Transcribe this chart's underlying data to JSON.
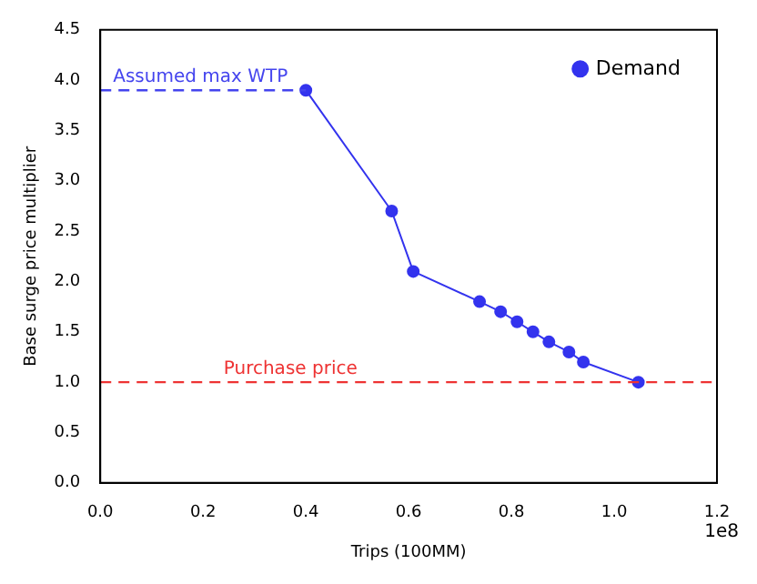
{
  "chart_data": {
    "type": "line",
    "xlabel": "Trips (100MM)",
    "ylabel": "Base surge price multiplier",
    "series": [
      {
        "name": "Demand",
        "color": "#3333ee",
        "x": [
          0.4,
          0.567,
          0.609,
          0.738,
          0.779,
          0.811,
          0.842,
          0.873,
          0.912,
          0.94,
          1.047
        ],
        "values": [
          3.9,
          2.7,
          2.1,
          1.8,
          1.7,
          1.6,
          1.5,
          1.4,
          1.3,
          1.2,
          1.0
        ]
      }
    ],
    "xlim": [
      0,
      1.2
    ],
    "xticks": [
      {
        "value": 0,
        "label": "0.0"
      },
      0.2,
      0.4,
      0.6,
      0.8,
      {
        "value": 1,
        "label": "1.0"
      },
      1.2
    ],
    "ylim": [
      0,
      4.5
    ],
    "yticks": [
      {
        "value": 0,
        "label": "0.0"
      },
      0.5,
      {
        "value": 1,
        "label": "1.0"
      },
      1.5,
      {
        "value": 2,
        "label": "2.0"
      },
      2.5,
      {
        "value": 3,
        "label": "3.0"
      },
      3.5,
      {
        "value": 4,
        "label": "4.0"
      },
      4.5
    ],
    "ref_lines": [
      {
        "axis": "y",
        "value": 3.9,
        "label": "Assumed max WTP",
        "color": "#4444ee",
        "line_style": "dashed"
      },
      {
        "axis": "y",
        "value": 1.0,
        "label": "Purchase price",
        "color": "#ee3333",
        "line_style": "dashed"
      }
    ],
    "annotations": [
      "1e8"
    ],
    "legend": "top right",
    "marker": "circle",
    "line_style": "solid",
    "grid": false
  }
}
